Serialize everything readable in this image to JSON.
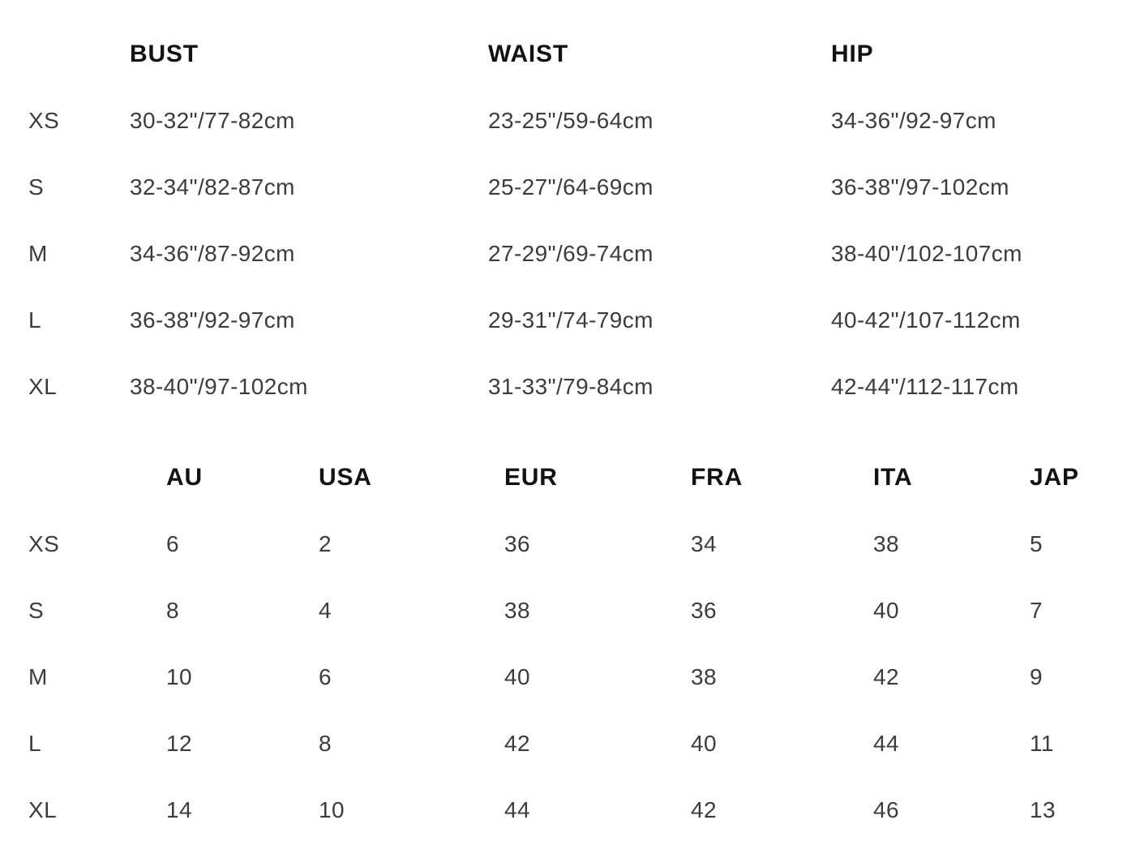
{
  "measurement_table": {
    "headers": {
      "size": "",
      "bust": "BUST",
      "waist": "WAIST",
      "hip": "HIP"
    },
    "rows": [
      {
        "size": "XS",
        "bust": "30-32\"/77-82cm",
        "waist": "23-25\"/59-64cm",
        "hip": "34-36\"/92-97cm"
      },
      {
        "size": "S",
        "bust": "32-34\"/82-87cm",
        "waist": "25-27\"/64-69cm",
        "hip": "36-38\"/97-102cm"
      },
      {
        "size": "M",
        "bust": "34-36\"/87-92cm",
        "waist": "27-29\"/69-74cm",
        "hip": "38-40\"/102-107cm"
      },
      {
        "size": "L",
        "bust": "36-38\"/92-97cm",
        "waist": "29-31\"/74-79cm",
        "hip": "40-42\"/107-112cm"
      },
      {
        "size": "XL",
        "bust": "38-40\"/97-102cm",
        "waist": "31-33\"/79-84cm",
        "hip": "42-44\"/112-117cm"
      }
    ]
  },
  "conversion_table": {
    "headers": {
      "size": "",
      "au": "AU",
      "usa": "USA",
      "eur": "EUR",
      "fra": "FRA",
      "ita": "ITA",
      "jap": "JAP"
    },
    "rows": [
      {
        "size": "XS",
        "au": "6",
        "usa": "2",
        "eur": "36",
        "fra": "34",
        "ita": "38",
        "jap": "5"
      },
      {
        "size": "S",
        "au": "8",
        "usa": "4",
        "eur": "38",
        "fra": "36",
        "ita": "40",
        "jap": "7"
      },
      {
        "size": "M",
        "au": "10",
        "usa": "6",
        "eur": "40",
        "fra": "38",
        "ita": "42",
        "jap": "9"
      },
      {
        "size": "L",
        "au": "12",
        "usa": "8",
        "eur": "42",
        "fra": "40",
        "ita": "44",
        "jap": "11"
      },
      {
        "size": "XL",
        "au": "14",
        "usa": "10",
        "eur": "44",
        "fra": "42",
        "ita": "46",
        "jap": "13"
      }
    ]
  },
  "colors": {
    "background": "#ffffff",
    "header_text": "#121212",
    "body_text": "#3c3c3c"
  }
}
